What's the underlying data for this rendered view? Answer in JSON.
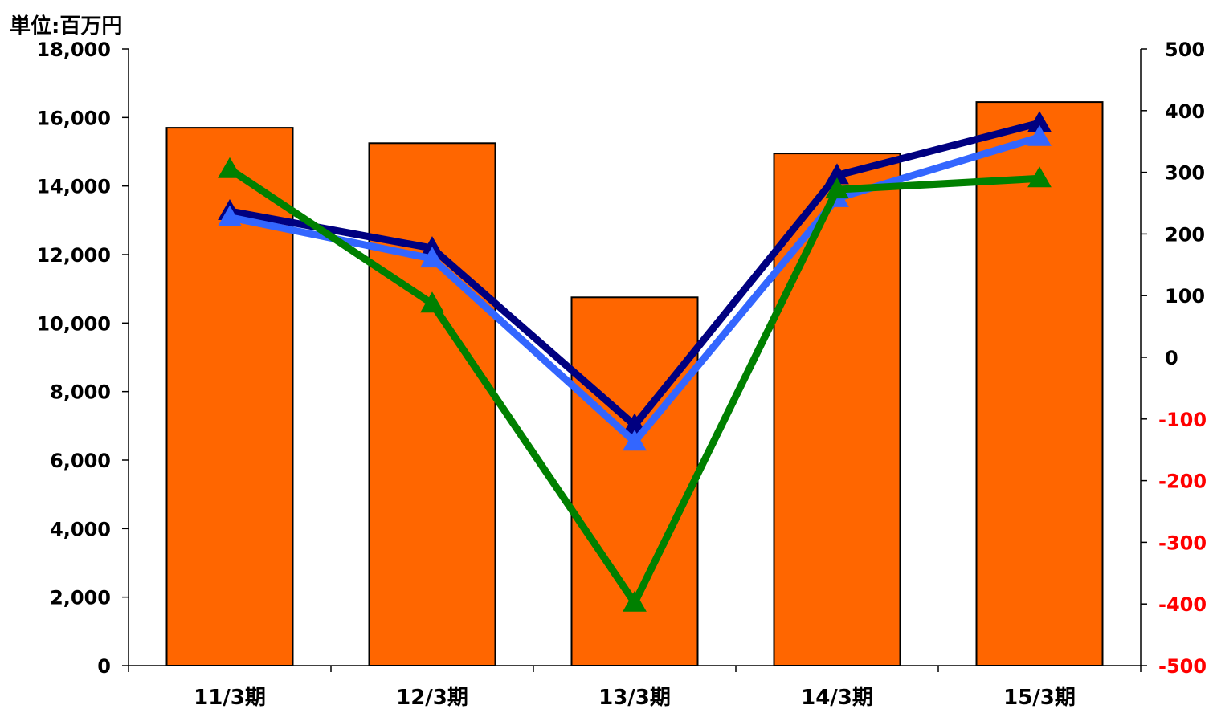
{
  "unit_label": "単位:百万円",
  "chart_data": {
    "type": "bar",
    "categories": [
      "11/3期",
      "12/3期",
      "13/3期",
      "14/3期",
      "15/3期"
    ],
    "bars": {
      "axis": "left",
      "values": [
        15700,
        15250,
        10750,
        14950,
        16450
      ],
      "color": "#FF6600"
    },
    "lines": [
      {
        "axis": "right",
        "values": [
          237,
          177,
          -110,
          295,
          380
        ],
        "color": "#000080"
      },
      {
        "axis": "right",
        "values": [
          227,
          160,
          -137,
          258,
          357
        ],
        "color": "#3366FF"
      },
      {
        "axis": "right",
        "values": [
          305,
          87,
          -398,
          272,
          290
        ],
        "color": "#008000"
      }
    ],
    "left_axis": {
      "ylim": [
        0,
        18000
      ],
      "ticks": [
        "0",
        "2,000",
        "4,000",
        "6,000",
        "8,000",
        "10,000",
        "12,000",
        "14,000",
        "16,000",
        "18,000"
      ]
    },
    "right_axis": {
      "ylim": [
        -500,
        500
      ],
      "ticks": [
        "-500",
        "-400",
        "-300",
        "-200",
        "-100",
        "0",
        "100",
        "200",
        "300",
        "400",
        "500"
      ],
      "negative_tick_color": "#FF0000",
      "positive_tick_color": "#000000"
    },
    "grid": false,
    "legend": "none"
  }
}
